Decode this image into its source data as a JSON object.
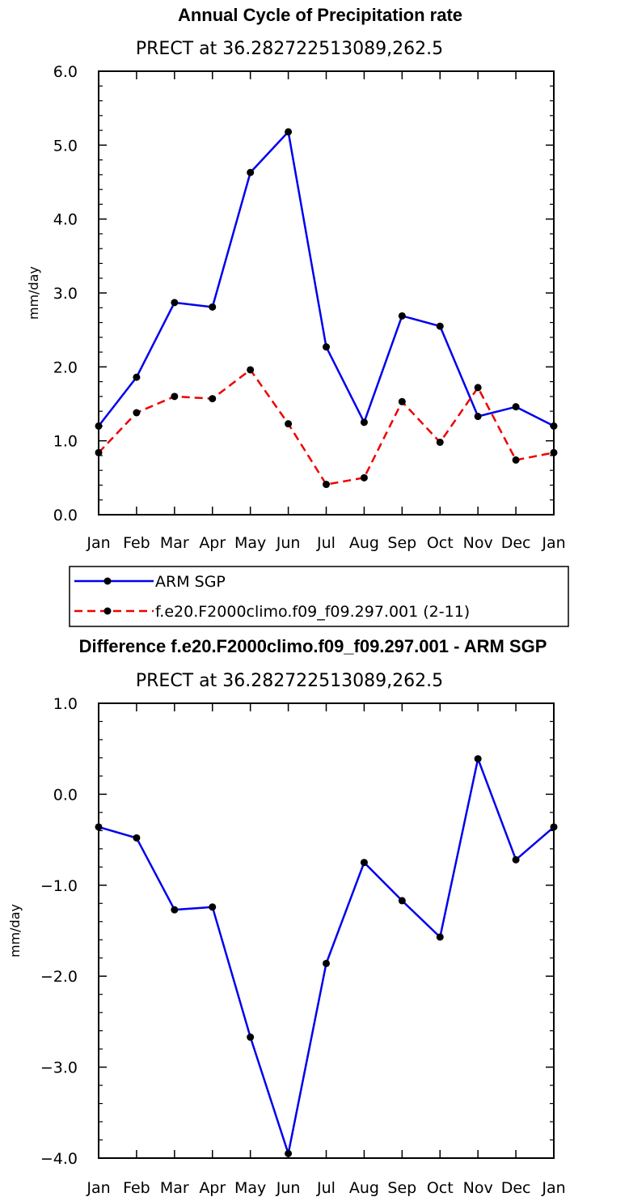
{
  "chart_data": [
    {
      "type": "line",
      "title": "Annual Cycle of Precipitation rate",
      "subtitle": "PRECT at 36.282722513089,262.5",
      "xlabel": "",
      "ylabel": "mm/day",
      "categories": [
        "Jan",
        "Feb",
        "Mar",
        "Apr",
        "May",
        "Jun",
        "Jul",
        "Aug",
        "Sep",
        "Oct",
        "Nov",
        "Dec",
        "Jan"
      ],
      "ylim": [
        0,
        6
      ],
      "yticks": [
        "0.0",
        "1.0",
        "2.0",
        "3.0",
        "4.0",
        "5.0",
        "6.0"
      ],
      "series": [
        {
          "name": "ARM SGP",
          "color": "#0000ee",
          "dash": "solid",
          "values": [
            1.2,
            1.86,
            2.87,
            2.81,
            4.63,
            5.18,
            2.27,
            1.25,
            2.69,
            2.55,
            1.33,
            1.46,
            1.2
          ]
        },
        {
          "name": "f.e20.F2000climo.f09_f09.297.001 (2-11)",
          "color": "#ee0000",
          "dash": "dashed",
          "values": [
            0.84,
            1.38,
            1.6,
            1.57,
            1.96,
            1.23,
            0.41,
            0.5,
            1.53,
            0.98,
            1.72,
            0.74,
            0.84
          ]
        }
      ],
      "legend": "below-left"
    },
    {
      "type": "line",
      "title": "Difference f.e20.F2000climo.f09_f09.297.001 - ARM SGP",
      "subtitle": "PRECT at 36.282722513089,262.5",
      "xlabel": "",
      "ylabel": "mm/day",
      "categories": [
        "Jan",
        "Feb",
        "Mar",
        "Apr",
        "May",
        "Jun",
        "Jul",
        "Aug",
        "Sep",
        "Oct",
        "Nov",
        "Dec",
        "Jan"
      ],
      "ylim": [
        -4,
        1
      ],
      "yticks": [
        "−4.0",
        "−3.0",
        "−2.0",
        "−1.0",
        "0.0",
        "1.0"
      ],
      "series": [
        {
          "name": "Difference",
          "color": "#0000ee",
          "dash": "solid",
          "values": [
            -0.36,
            -0.48,
            -1.27,
            -1.24,
            -2.67,
            -3.95,
            -1.86,
            -0.75,
            -1.17,
            -1.57,
            0.39,
            -0.72,
            -0.36
          ]
        }
      ]
    }
  ]
}
